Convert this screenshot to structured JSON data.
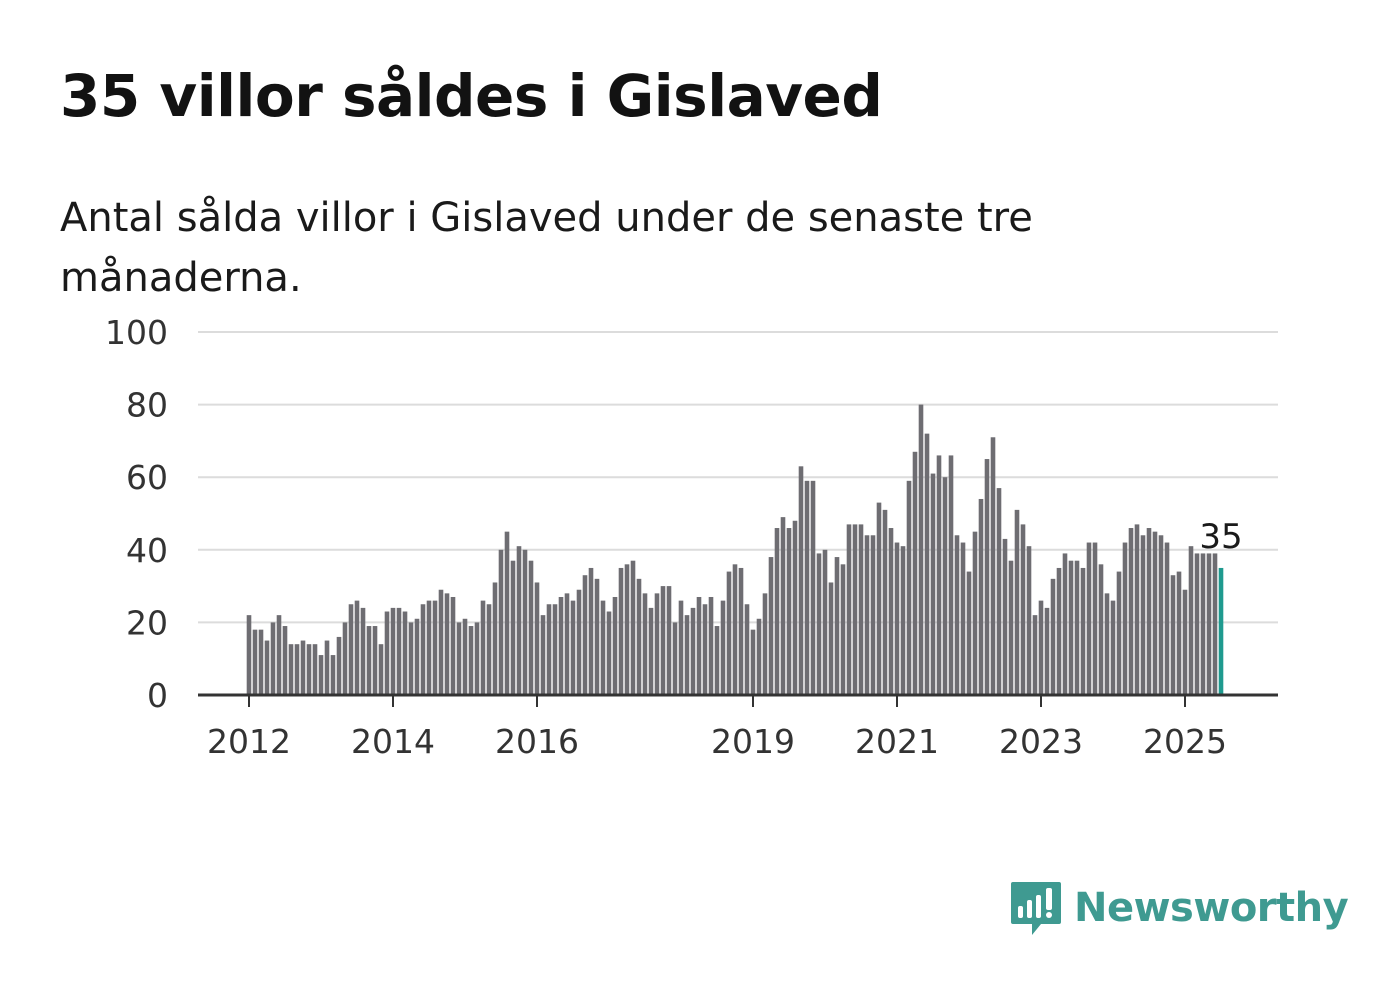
{
  "title": "35 villor såldes i Gislaved",
  "subtitle": "Antal sålda villor i Gislaved under de senaste tre månaderna.",
  "brand": {
    "name": "Newsworthy",
    "icon": "newsworthy-logo-icon",
    "color": "#3f9a91"
  },
  "chart_data": {
    "type": "bar",
    "ylim": [
      0,
      100
    ],
    "yticks": [
      0,
      20,
      40,
      60,
      80,
      100
    ],
    "xticks": [
      "2012",
      "2014",
      "2016",
      "2019",
      "2021",
      "2023",
      "2025"
    ],
    "x_start": "2012-01",
    "grid": true,
    "bar_color": "#6e6d72",
    "highlight_color": "#1f9a8f",
    "highlight_label": "35",
    "values": [
      22,
      18,
      18,
      15,
      20,
      22,
      19,
      14,
      14,
      15,
      14,
      14,
      11,
      15,
      11,
      16,
      20,
      25,
      26,
      24,
      19,
      19,
      14,
      23,
      24,
      24,
      23,
      20,
      21,
      25,
      26,
      26,
      29,
      28,
      27,
      20,
      21,
      19,
      20,
      26,
      25,
      31,
      40,
      45,
      37,
      41,
      40,
      37,
      31,
      22,
      25,
      25,
      27,
      28,
      26,
      29,
      33,
      35,
      32,
      26,
      23,
      27,
      35,
      36,
      37,
      32,
      28,
      24,
      28,
      30,
      30,
      20,
      26,
      22,
      24,
      27,
      25,
      27,
      19,
      26,
      34,
      36,
      35,
      25,
      18,
      21,
      28,
      38,
      46,
      49,
      46,
      48,
      63,
      59,
      59,
      39,
      40,
      31,
      38,
      36,
      47,
      47,
      47,
      44,
      44,
      53,
      51,
      46,
      42,
      41,
      59,
      67,
      80,
      72,
      61,
      66,
      60,
      66,
      44,
      42,
      34,
      45,
      54,
      65,
      71,
      57,
      43,
      37,
      51,
      47,
      41,
      22,
      26,
      24,
      32,
      35,
      39,
      37,
      37,
      35,
      42,
      42,
      36,
      28,
      26,
      34,
      42,
      46,
      47,
      44,
      46,
      45,
      44,
      42,
      33,
      34,
      29,
      41,
      39,
      39,
      39,
      39,
      35
    ]
  }
}
